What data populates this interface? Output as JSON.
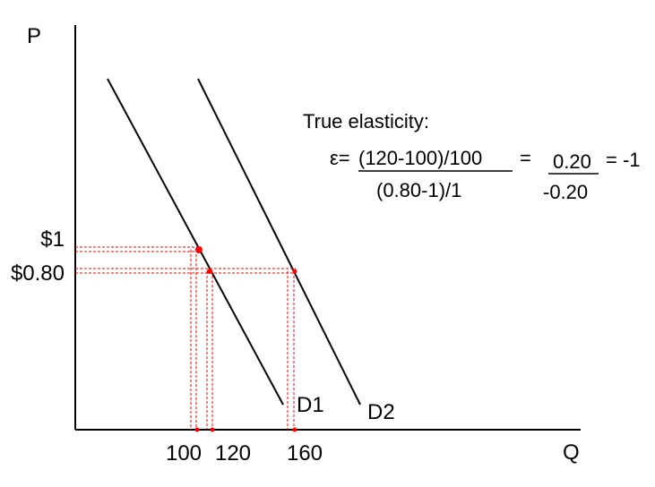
{
  "axes": {
    "y_label": "P",
    "x_label": "Q"
  },
  "price_labels": {
    "p1": "$1",
    "p2": "$0.80"
  },
  "quantity_labels": {
    "q1": "100",
    "q2": "120",
    "q3": "160"
  },
  "curves": {
    "d1": "D1",
    "d2": "D2"
  },
  "formula": {
    "title": "True elasticity:",
    "prefix": "ε=",
    "numerator": "(120-100)/100",
    "denominator": "(0.80-1)/1",
    "equals": "=",
    "ratio_numerator": "0.20",
    "ratio_denominator": "-0.20",
    "result": "= -1"
  },
  "colors": {
    "axis": "#000000",
    "curve": "#000000",
    "guide": "#ff0000",
    "point": "#ff0000"
  }
}
